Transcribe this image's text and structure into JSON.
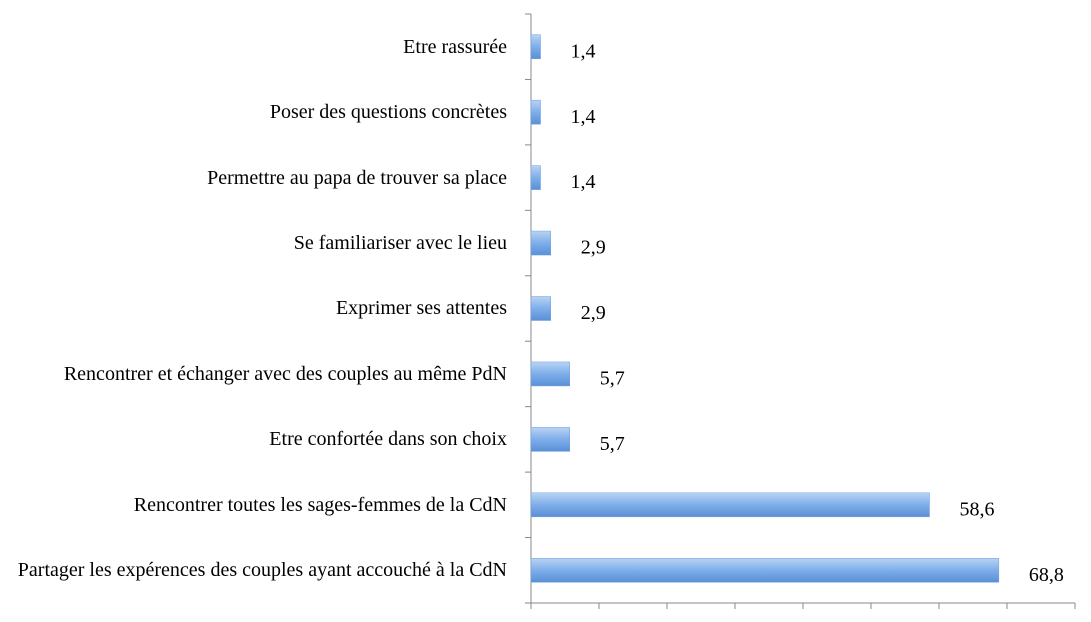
{
  "chart_data": {
    "type": "hbar",
    "categories": [
      "Etre rassurée",
      "Poser des questions concrètes",
      "Permettre au papa de trouver sa place",
      "Se familiariser avec le lieu",
      "Exprimer ses attentes",
      "Rencontrer et échanger avec des couples au même PdN",
      "Etre confortée dans son choix",
      "Rencontrer toutes les sages-femmes de la CdN",
      "Partager les expérences des couples ayant accouché à la CdN"
    ],
    "values": [
      1.4,
      1.4,
      1.4,
      2.9,
      2.9,
      5.7,
      5.7,
      58.6,
      68.8
    ],
    "value_labels": [
      "1,4",
      "1,4",
      "1,4",
      "2,9",
      "2,9",
      "5,7",
      "5,7",
      "58,6",
      "68,8"
    ],
    "color": "#6fa0e0",
    "xlim": [
      0,
      80
    ],
    "xticks": [
      0,
      10,
      20,
      30,
      40,
      50,
      60,
      70,
      80
    ]
  }
}
